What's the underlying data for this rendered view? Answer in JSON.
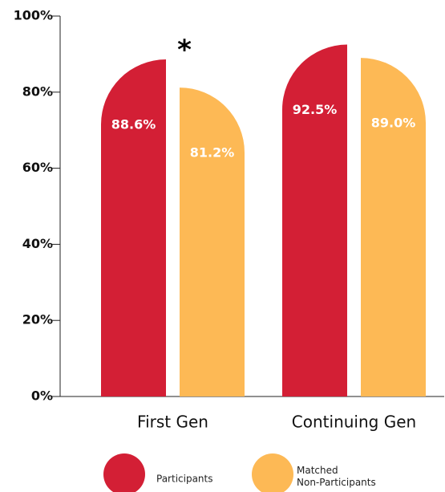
{
  "chart_data": {
    "type": "bar",
    "categories": [
      "First Gen",
      "Continuing Gen"
    ],
    "series": [
      {
        "name": "Participants",
        "color": "#d31f35",
        "values": [
          88.6,
          92.5
        ],
        "value_labels": [
          "88.6%",
          "92.5%"
        ]
      },
      {
        "name": "Matched Non-Participants",
        "color": "#fdb955",
        "values": [
          81.2,
          89.0
        ],
        "value_labels": [
          "81.2%",
          "89.0%"
        ]
      }
    ],
    "annotations": [
      "*"
    ],
    "ylim": [
      0,
      100
    ],
    "yticks": [
      {
        "value": 0,
        "label": "0%"
      },
      {
        "value": 20,
        "label": "20%"
      },
      {
        "value": 40,
        "label": "40%"
      },
      {
        "value": 60,
        "label": "60%"
      },
      {
        "value": 80,
        "label": "80%"
      },
      {
        "value": 100,
        "label": "100%"
      }
    ],
    "legend": "bottom"
  }
}
